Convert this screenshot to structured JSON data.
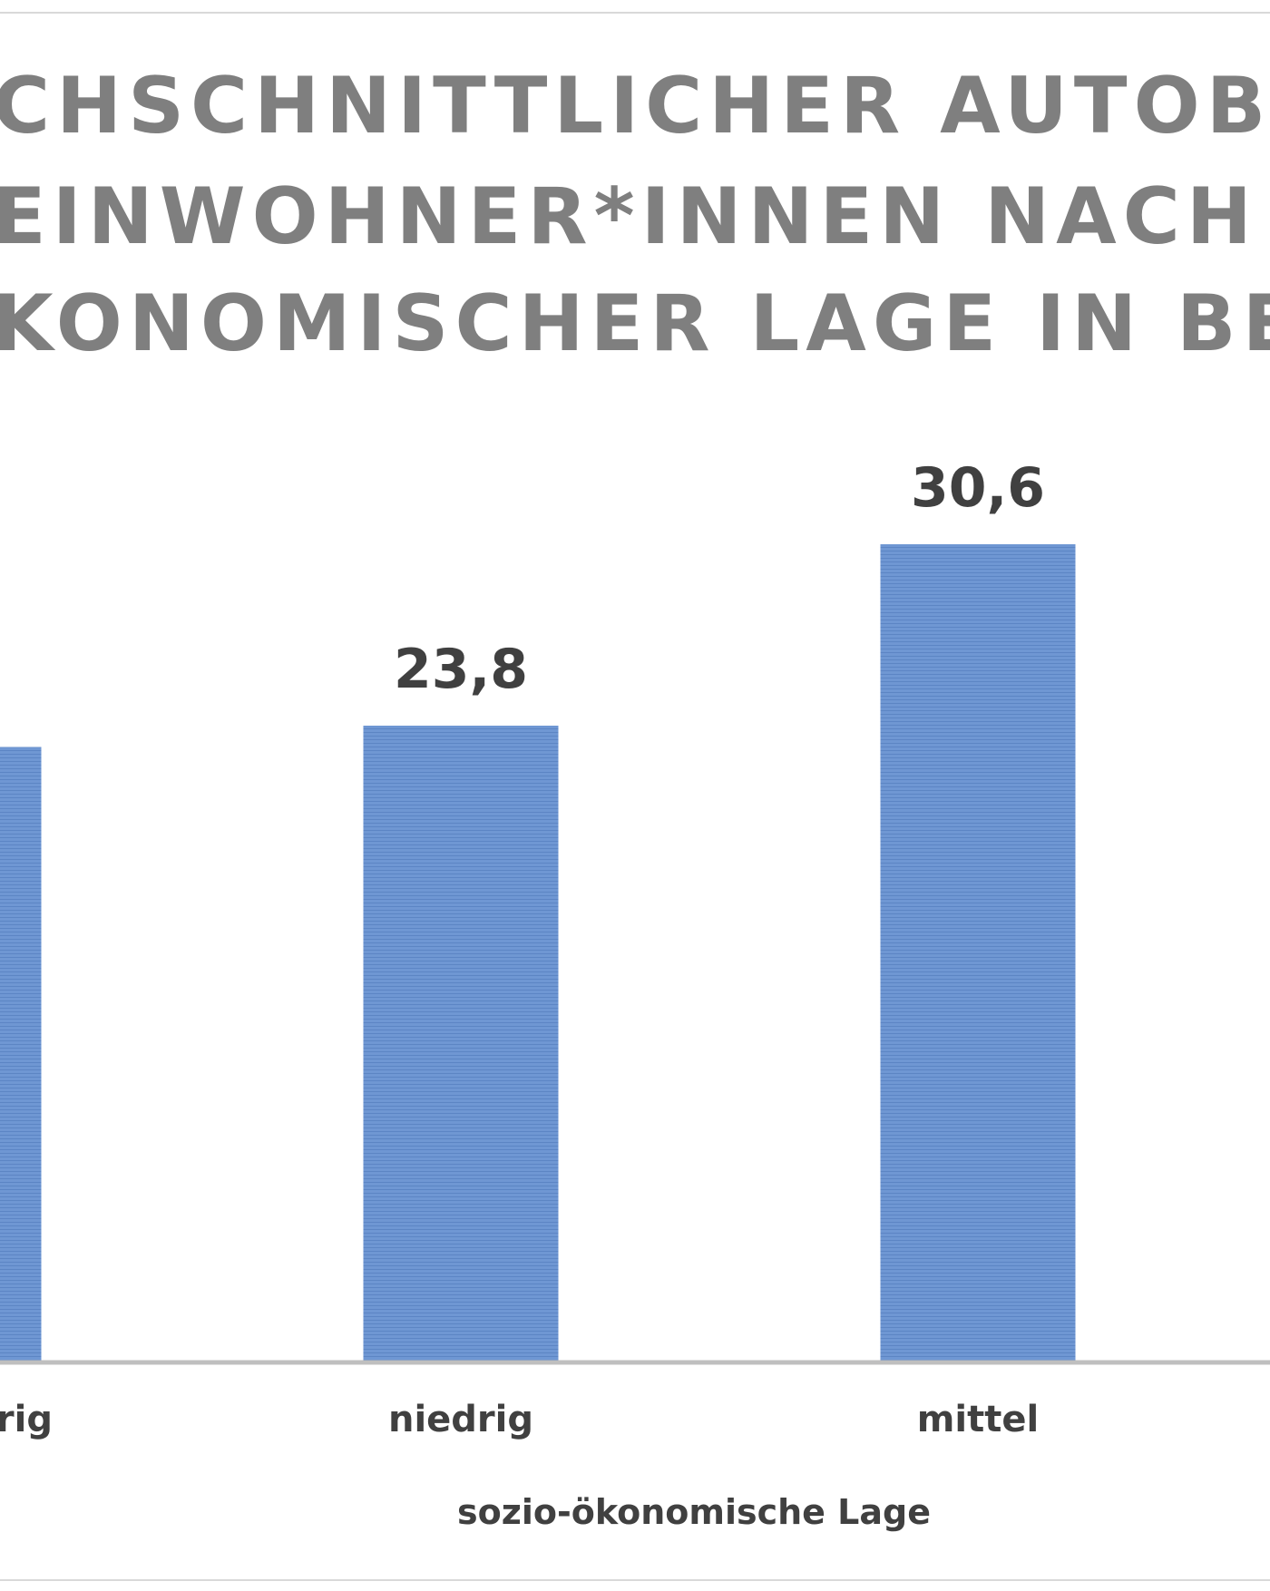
{
  "colors": {
    "bar": "#6f97d3",
    "bar_stripe": "#5c85c4",
    "title": "#7f7f7f",
    "labels": "#404040",
    "axis": "#bfbfbf",
    "border": "#d9d9d9"
  },
  "chart_data": {
    "type": "bar",
    "title_lines": [
      "CHSCHNITTLICHER AUTOBESIT",
      "EINWOHNER*INNEN NACH SO",
      "KONOMISCHER LAGE IN BERL"
    ],
    "categories": [
      "drig",
      "niedrig",
      "mittel"
    ],
    "values": [
      23.0,
      23.8,
      30.6
    ],
    "data_labels": [
      "",
      "23,8",
      "30,6"
    ],
    "xlabel": "sozio-ökonomische Lage",
    "ylim": [
      0,
      34
    ],
    "grid": false,
    "legend": "none"
  }
}
